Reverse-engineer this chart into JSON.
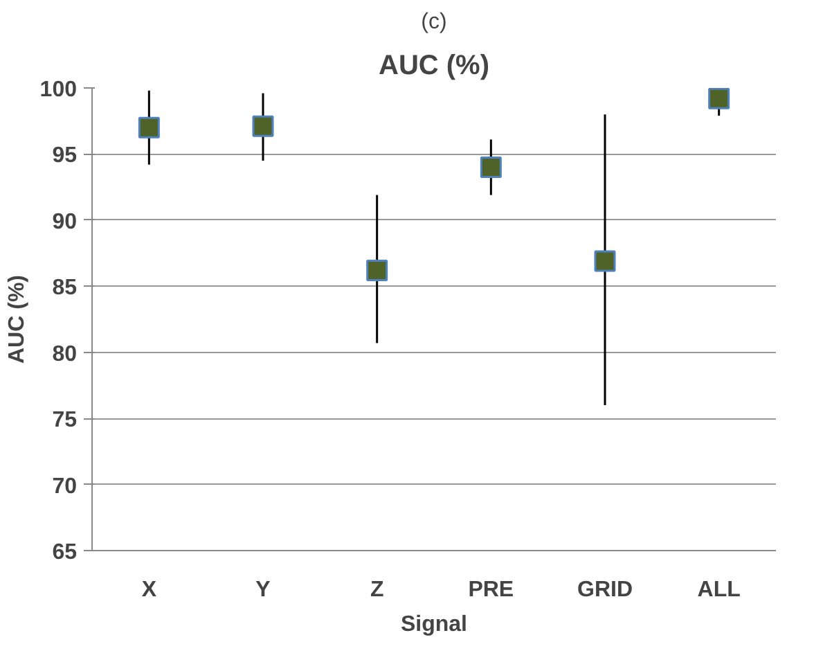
{
  "chart_data": {
    "type": "scatter",
    "title": "AUC (%)",
    "xlabel": "Signal",
    "ylabel": "AUC (%)",
    "annotations": [
      "(c)"
    ],
    "categories": [
      "X",
      "Y",
      "Z",
      "PRE",
      "GRID",
      "ALL"
    ],
    "values": [
      97.0,
      97.1,
      86.2,
      94.0,
      86.9,
      99.2
    ],
    "errors": [
      [
        94.2,
        99.8
      ],
      [
        94.5,
        99.6
      ],
      [
        80.7,
        91.9
      ],
      [
        91.9,
        96.1
      ],
      [
        76.0,
        98.0
      ],
      [
        97.9,
        100
      ]
    ],
    "color": "#4f6228",
    "marker": "square",
    "grid": "y",
    "ylim": [
      65,
      100
    ],
    "yticks": [
      65,
      70,
      75,
      80,
      85,
      90,
      95,
      100
    ]
  }
}
